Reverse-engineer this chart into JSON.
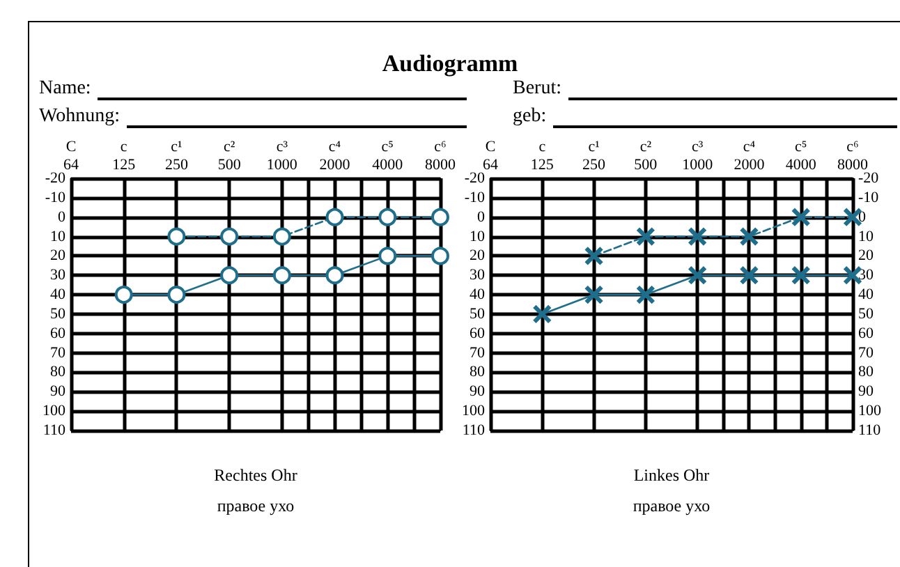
{
  "chart_data": [
    {
      "type": "line",
      "title": "Audiogramm",
      "annotations": [
        "Name:",
        "Berut:",
        "Wohnung:",
        "geb:"
      ],
      "xlabel": "Rechtes Ohr\nправое ухо",
      "marker": "circle",
      "grid": true,
      "categories": [
        "C\n64",
        null,
        "c\n125",
        null,
        "c¹\n250",
        null,
        "c²\n500",
        null,
        "c³\n1000",
        null,
        "c⁴\n2000",
        null,
        "c⁵\n4000",
        null,
        "c⁶\n8000"
      ],
      "ylim": [
        110,
        -20
      ],
      "yticks": [
        -20,
        -10,
        0,
        10,
        20,
        30,
        40,
        50,
        60,
        70,
        80,
        90,
        100,
        110
      ],
      "series": [
        {
          "color": "#1f6e8c",
          "line_style": "dashed",
          "values": [
            null,
            null,
            null,
            null,
            10,
            null,
            10,
            null,
            10,
            null,
            0,
            null,
            0,
            null,
            0
          ]
        },
        {
          "color": "#1f6e8c",
          "line_style": "solid",
          "values": [
            null,
            null,
            40,
            null,
            40,
            null,
            30,
            null,
            30,
            null,
            30,
            null,
            20,
            null,
            20
          ]
        }
      ]
    },
    {
      "type": "line",
      "xlabel": "Linkes Ohr\nправое ухо",
      "marker": "cross",
      "grid": true,
      "categories": [
        "C\n64",
        null,
        "c\n125",
        null,
        "c¹\n250",
        null,
        "c²\n500",
        null,
        "c³\n1000",
        null,
        "c⁴\n2000",
        null,
        "c⁵\n4000",
        null,
        "c⁶\n8000"
      ],
      "ylim": [
        110,
        -20
      ],
      "yticks": [
        -20,
        -10,
        0,
        10,
        20,
        30,
        40,
        50,
        60,
        70,
        80,
        90,
        100,
        110
      ],
      "y2lim": [
        110,
        -20
      ],
      "y2ticks": [
        -20,
        -10,
        0,
        10,
        20,
        30,
        40,
        50,
        60,
        70,
        80,
        90,
        100,
        110
      ],
      "series": [
        {
          "color": "#1f6e8c",
          "line_style": "dashed",
          "values": [
            null,
            null,
            null,
            null,
            20,
            null,
            10,
            null,
            10,
            null,
            10,
            null,
            0,
            null,
            0
          ]
        },
        {
          "color": "#1f6e8c",
          "line_style": "solid",
          "values": [
            null,
            null,
            50,
            null,
            40,
            null,
            40,
            null,
            30,
            null,
            30,
            null,
            30,
            null,
            30
          ]
        }
      ]
    }
  ]
}
